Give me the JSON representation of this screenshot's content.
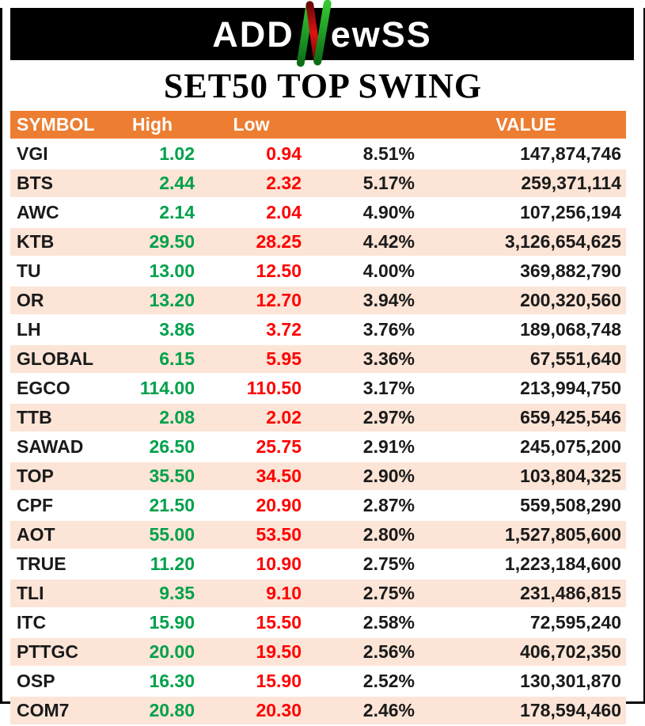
{
  "brand": {
    "logo_prefix": "ADD",
    "logo_n": "N",
    "logo_suffix": "ewSS"
  },
  "title": "SET50 TOP SWING",
  "chart_data": {
    "type": "table",
    "title": "SET50 TOP SWING",
    "columns": [
      "SYMBOL",
      "High",
      "Low",
      "",
      "VALUE"
    ],
    "rows": [
      [
        "VGI",
        "1.02",
        "0.94",
        "8.51%",
        "147,874,746"
      ],
      [
        "BTS",
        "2.44",
        "2.32",
        "5.17%",
        "259,371,114"
      ],
      [
        "AWC",
        "2.14",
        "2.04",
        "4.90%",
        "107,256,194"
      ],
      [
        "KTB",
        "29.50",
        "28.25",
        "4.42%",
        "3,126,654,625"
      ],
      [
        "TU",
        "13.00",
        "12.50",
        "4.00%",
        "369,882,790"
      ],
      [
        "OR",
        "13.20",
        "12.70",
        "3.94%",
        "200,320,560"
      ],
      [
        "LH",
        "3.86",
        "3.72",
        "3.76%",
        "189,068,748"
      ],
      [
        "GLOBAL",
        "6.15",
        "5.95",
        "3.36%",
        "67,551,640"
      ],
      [
        "EGCO",
        "114.00",
        "110.50",
        "3.17%",
        "213,994,750"
      ],
      [
        "TTB",
        "2.08",
        "2.02",
        "2.97%",
        "659,425,546"
      ],
      [
        "SAWAD",
        "26.50",
        "25.75",
        "2.91%",
        "245,075,200"
      ],
      [
        "TOP",
        "35.50",
        "34.50",
        "2.90%",
        "103,804,325"
      ],
      [
        "CPF",
        "21.50",
        "20.90",
        "2.87%",
        "559,508,290"
      ],
      [
        "AOT",
        "55.00",
        "53.50",
        "2.80%",
        "1,527,805,600"
      ],
      [
        "TRUE",
        "11.20",
        "10.90",
        "2.75%",
        "1,223,184,600"
      ],
      [
        "TLI",
        "9.35",
        "9.10",
        "2.75%",
        "231,486,815"
      ],
      [
        "ITC",
        "15.90",
        "15.50",
        "2.58%",
        "72,595,240"
      ],
      [
        "PTTGC",
        "20.00",
        "19.50",
        "2.56%",
        "406,702,350"
      ],
      [
        "OSP",
        "16.30",
        "15.90",
        "2.52%",
        "130,301,870"
      ],
      [
        "COM7",
        "20.80",
        "20.30",
        "2.46%",
        "178,594,460"
      ]
    ]
  },
  "colors": {
    "banner_bg": "#000000",
    "header_bg": "#ED7D31",
    "alt_row_bg": "#FCE4D6",
    "high_green": "#00A14B",
    "low_red": "#FF0000",
    "logo_green_bright": "#35C832",
    "logo_green_dark": "#0C6E16",
    "logo_red": "#D40F0F"
  }
}
